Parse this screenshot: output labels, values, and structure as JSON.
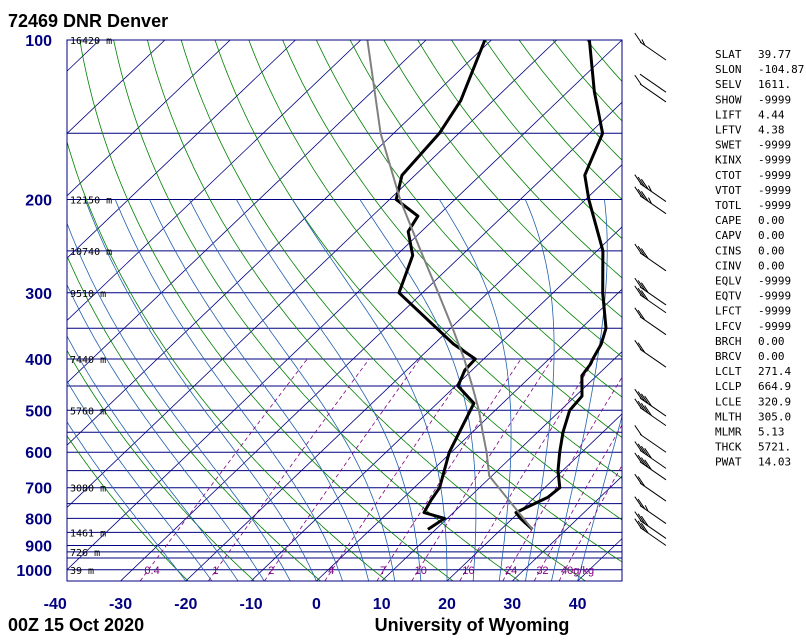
{
  "title": "72469 DNR Denver",
  "footer": {
    "date": "00Z 15 Oct 2020",
    "source": "University of Wyoming"
  },
  "colors": {
    "isobar": "#000080",
    "isotherm": "#000080",
    "dry_adiabat": "#008000",
    "moist_adiabat": "#2060b0",
    "mixing_ratio": "#800080",
    "temperature": "#000000",
    "dewpoint": "#000000",
    "parcel": "#808080"
  },
  "height_labels": [
    {
      "p": 100,
      "text": "16420 m"
    },
    {
      "p": 200,
      "text": "12150 m"
    },
    {
      "p": 250,
      "text": "10740 m"
    },
    {
      "p": 300,
      "text": "9510 m"
    },
    {
      "p": 400,
      "text": "7440 m"
    },
    {
      "p": 500,
      "text": "5760 m"
    },
    {
      "p": 700,
      "text": "3080 m"
    },
    {
      "p": 850,
      "text": "1461 m"
    },
    {
      "p": 925,
      "text": "726 m"
    },
    {
      "p": 1000,
      "text": "39 m"
    }
  ],
  "mixing_ratio_labels": [
    "0.4",
    "1",
    "2",
    "4",
    "7",
    "10",
    "16",
    "24",
    "32",
    "40g/kg"
  ],
  "indices": [
    {
      "name": "SLAT",
      "value": "39.77"
    },
    {
      "name": "SLON",
      "value": "-104.87"
    },
    {
      "name": "SELV",
      "value": "1611."
    },
    {
      "name": "SHOW",
      "value": "-9999"
    },
    {
      "name": "LIFT",
      "value": "4.44"
    },
    {
      "name": "LFTV",
      "value": "4.38"
    },
    {
      "name": "SWET",
      "value": "-9999"
    },
    {
      "name": "KINX",
      "value": "-9999"
    },
    {
      "name": "CTOT",
      "value": "-9999"
    },
    {
      "name": "VTOT",
      "value": "-9999"
    },
    {
      "name": "TOTL",
      "value": "-9999"
    },
    {
      "name": "CAPE",
      "value": "0.00"
    },
    {
      "name": "CAPV",
      "value": "0.00"
    },
    {
      "name": "CINS",
      "value": "0.00"
    },
    {
      "name": "CINV",
      "value": "0.00"
    },
    {
      "name": "EQLV",
      "value": "-9999"
    },
    {
      "name": "EQTV",
      "value": "-9999"
    },
    {
      "name": "LFCT",
      "value": "-9999"
    },
    {
      "name": "LFCV",
      "value": "-9999"
    },
    {
      "name": "BRCH",
      "value": "0.00"
    },
    {
      "name": "BRCV",
      "value": "0.00"
    },
    {
      "name": "LCLT",
      "value": "271.4"
    },
    {
      "name": "LCLP",
      "value": "664.9"
    },
    {
      "name": "LCLE",
      "value": "320.9"
    },
    {
      "name": "MLTH",
      "value": "305.0"
    },
    {
      "name": "MLMR",
      "value": "5.13"
    },
    {
      "name": "THCK",
      "value": "5721."
    },
    {
      "name": "PWAT",
      "value": "14.03"
    }
  ],
  "chart_data": {
    "type": "line",
    "pressure_ticks": [
      100,
      200,
      300,
      400,
      500,
      600,
      700,
      800,
      900,
      1000
    ],
    "temperature_ticks": [
      -40,
      -30,
      -20,
      -10,
      0,
      10,
      20,
      30,
      40
    ],
    "isobars": [
      100,
      150,
      200,
      250,
      300,
      350,
      400,
      450,
      500,
      550,
      600,
      650,
      700,
      750,
      800,
      850,
      900,
      925,
      950,
      1000
    ],
    "xlim": [
      -40,
      45
    ],
    "ylim": [
      1050,
      100
    ],
    "yscale": "log",
    "skew_deg_per_decade": 85,
    "series": [
      {
        "role": "temperature",
        "points": [
          [
            839,
            24.8
          ],
          [
            800,
            21.2
          ],
          [
            780,
            19.6
          ],
          [
            760,
            20.5
          ],
          [
            730,
            22.0
          ],
          [
            700,
            22.3
          ],
          [
            650,
            19.3
          ],
          [
            600,
            16.6
          ],
          [
            550,
            13.9
          ],
          [
            500,
            11.4
          ],
          [
            470,
            11.0
          ],
          [
            430,
            7.7
          ],
          [
            410,
            7.2
          ],
          [
            400,
            6.7
          ],
          [
            375,
            5.6
          ],
          [
            350,
            3.8
          ],
          [
            300,
            -2.4
          ],
          [
            250,
            -9.1
          ],
          [
            200,
            -19.5
          ],
          [
            180,
            -24.0
          ],
          [
            150,
            -28.0
          ],
          [
            125,
            -36.0
          ],
          [
            100,
            -45.0
          ]
        ]
      },
      {
        "role": "dewpoint",
        "points": [
          [
            839,
            8.8
          ],
          [
            800,
            9.6
          ],
          [
            780,
            5.5
          ],
          [
            740,
            4.6
          ],
          [
            700,
            3.9
          ],
          [
            600,
            -0.3
          ],
          [
            500,
            -3.8
          ],
          [
            485,
            -4.4
          ],
          [
            450,
            -9.6
          ],
          [
            420,
            -11.1
          ],
          [
            400,
            -11.3
          ],
          [
            375,
            -17.0
          ],
          [
            300,
            -33.6
          ],
          [
            255,
            -37.5
          ],
          [
            230,
            -42.0
          ],
          [
            215,
            -43.0
          ],
          [
            200,
            -49.0
          ],
          [
            180,
            -52.0
          ],
          [
            150,
            -53.0
          ],
          [
            130,
            -55.0
          ],
          [
            100,
            -61.0
          ]
        ]
      },
      {
        "role": "parcel",
        "points": [
          [
            839,
            24.8
          ],
          [
            664.9,
            9.6
          ],
          [
            600,
            5.4
          ],
          [
            550,
            1.6
          ],
          [
            500,
            -2.5
          ],
          [
            450,
            -7.4
          ],
          [
            400,
            -13.0
          ],
          [
            350,
            -19.7
          ],
          [
            300,
            -27.6
          ],
          [
            250,
            -37.0
          ],
          [
            200,
            -48.4
          ],
          [
            150,
            -62.0
          ],
          [
            100,
            -79.0
          ]
        ]
      }
    ],
    "wind_barbs": [
      {
        "p": 100,
        "speed_kt": 15
      },
      {
        "p": 115,
        "speed_kt": 50
      },
      {
        "p": 120,
        "speed_kt": 60
      },
      {
        "p": 185,
        "speed_kt": 35
      },
      {
        "p": 195,
        "speed_kt": 35
      },
      {
        "p": 250,
        "speed_kt": 30
      },
      {
        "p": 290,
        "speed_kt": 30
      },
      {
        "p": 300,
        "speed_kt": 30
      },
      {
        "p": 330,
        "speed_kt": 20
      },
      {
        "p": 380,
        "speed_kt": 20
      },
      {
        "p": 470,
        "speed_kt": 40
      },
      {
        "p": 490,
        "speed_kt": 40
      },
      {
        "p": 550,
        "speed_kt": 10
      },
      {
        "p": 590,
        "speed_kt": 40
      },
      {
        "p": 620,
        "speed_kt": 40
      },
      {
        "p": 680,
        "speed_kt": 20
      },
      {
        "p": 750,
        "speed_kt": 25
      },
      {
        "p": 800,
        "speed_kt": 30
      },
      {
        "p": 825,
        "speed_kt": 30
      }
    ]
  }
}
